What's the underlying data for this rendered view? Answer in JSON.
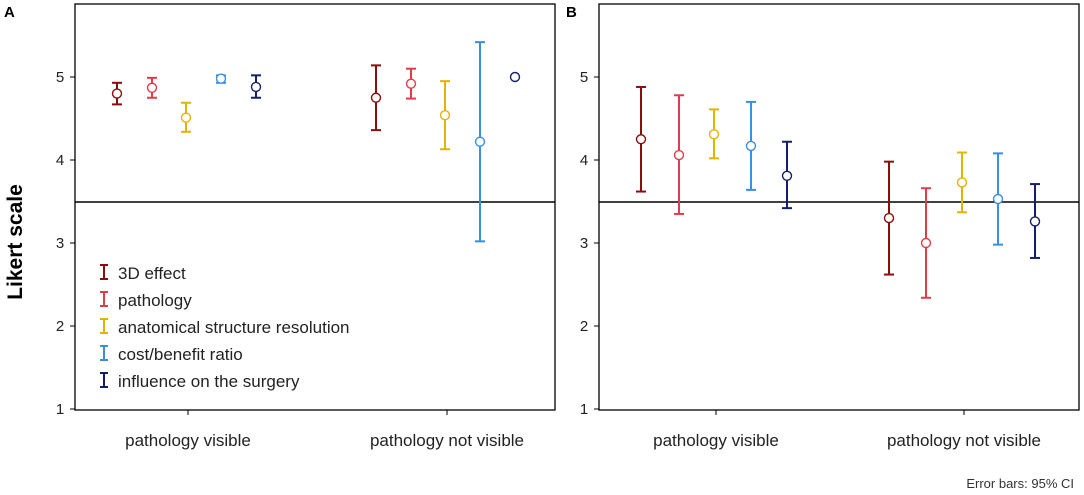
{
  "figure": {
    "ylabel": "Likert scale",
    "footnote": "Error bars: 95% CI",
    "reference_line": 3.5
  },
  "chart_data": [
    {
      "type": "errorbar",
      "panel": "A",
      "categories": [
        "pathology visible",
        "pathology not visible"
      ],
      "ylabel": "Likert scale",
      "ylim": [
        1,
        5.85
      ],
      "yticks": [
        1,
        2,
        3,
        4,
        5
      ],
      "legend_position": "bottom-left",
      "series": [
        {
          "name": "3D effect",
          "color": "#8b0d0d",
          "mean": [
            4.8,
            4.75
          ],
          "low": [
            4.67,
            4.36
          ],
          "high": [
            4.93,
            5.14
          ]
        },
        {
          "name": "pathology",
          "color": "#e03c4a",
          "mean": [
            4.87,
            4.92
          ],
          "low": [
            4.75,
            4.74
          ],
          "high": [
            4.99,
            5.1
          ]
        },
        {
          "name": "anatomical structure resolution",
          "color": "#e2b400",
          "mean": [
            4.51,
            4.54
          ],
          "low": [
            4.34,
            4.13
          ],
          "high": [
            4.69,
            4.95
          ]
        },
        {
          "name": "cost/benefit ratio",
          "color": "#3b8fdf",
          "mean": [
            4.98,
            4.22
          ],
          "low": [
            4.93,
            3.02
          ],
          "high": [
            5.02,
            5.42
          ]
        },
        {
          "name": "influence on the surgery",
          "color": "#14206a",
          "mean": [
            4.88,
            5.0
          ],
          "low": [
            4.75,
            5.0
          ],
          "high": [
            5.02,
            5.0
          ]
        }
      ]
    },
    {
      "type": "errorbar",
      "panel": "B",
      "categories": [
        "pathology visible",
        "pathology not visible"
      ],
      "ylabel": "",
      "ylim": [
        1,
        5.85
      ],
      "yticks": [
        1,
        2,
        3,
        4,
        5
      ],
      "series": [
        {
          "name": "3D effect",
          "color": "#8b0d0d",
          "mean": [
            4.25,
            3.3
          ],
          "low": [
            3.62,
            2.62
          ],
          "high": [
            4.88,
            3.98
          ]
        },
        {
          "name": "pathology",
          "color": "#e03c4a",
          "mean": [
            4.06,
            3.0
          ],
          "low": [
            3.35,
            2.34
          ],
          "high": [
            4.78,
            3.66
          ]
        },
        {
          "name": "anatomical structure resolution",
          "color": "#e2b400",
          "mean": [
            4.31,
            3.73
          ],
          "low": [
            4.02,
            3.37
          ],
          "high": [
            4.61,
            4.09
          ]
        },
        {
          "name": "cost/benefit ratio",
          "color": "#3b8fdf",
          "mean": [
            4.17,
            3.53
          ],
          "low": [
            3.64,
            2.98
          ],
          "high": [
            4.7,
            4.08
          ]
        },
        {
          "name": "influence on the surgery",
          "color": "#14206a",
          "mean": [
            3.81,
            3.26
          ],
          "low": [
            3.42,
            2.82
          ],
          "high": [
            4.22,
            3.71
          ]
        }
      ]
    }
  ]
}
